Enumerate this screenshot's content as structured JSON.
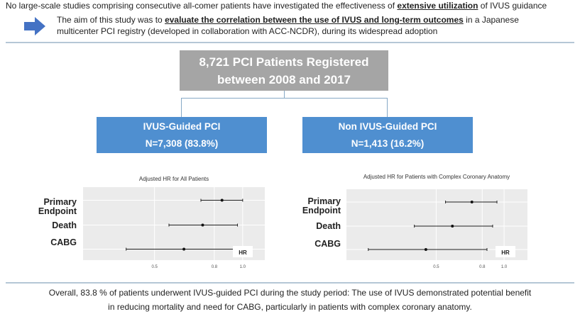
{
  "intro": {
    "pre": "No large-scale studies comprising consecutive all-comer patients have investigated the effectiveness of ",
    "emph": "extensive utilization",
    "post": " of IVUS guidance"
  },
  "aim": {
    "pre": "The aim of this study was to ",
    "emph": "evaluate the correlation between the use of IVUS and long-term outcomes",
    "post": " in a Japanese",
    "line2": "multicenter PCI registry (developed in collaboration with ACC-NCDR), during its widespread adoption"
  },
  "flow": {
    "total_line1": "8,721 PCI Patients Registered",
    "total_line2": "between 2008 and 2017",
    "left": {
      "label": "IVUS-Guided PCI",
      "n": "N=7,308 (83.8%)"
    },
    "right": {
      "label": "Non IVUS-Guided PCI",
      "n": "N=1,413 (16.2%)"
    }
  },
  "chart_data": [
    {
      "type": "forest",
      "title": "Adjusted HR for All Patients",
      "xscale": "log",
      "xlim": [
        0.285,
        1.19
      ],
      "xticks": [
        "0.5",
        "0.8",
        "1.0"
      ],
      "legend_label": "HR",
      "categories": [
        "Primary Endpoint",
        "Death",
        "CABG"
      ],
      "hr": [
        0.85,
        0.73,
        0.63
      ],
      "lower": [
        0.72,
        0.56,
        0.4
      ],
      "upper": [
        1.0,
        0.96,
        0.98
      ]
    },
    {
      "type": "forest",
      "title": "Adjusted HR for Patients with Complex Coronary Anatomy",
      "xscale": "log",
      "xlim": [
        0.2,
        1.27
      ],
      "xticks": [
        "0.5",
        "0.8",
        "1.0"
      ],
      "legend_label": "HR",
      "categories": [
        "Primary Endpoint",
        "Death",
        "CABG"
      ],
      "hr": [
        0.72,
        0.59,
        0.45
      ],
      "lower": [
        0.55,
        0.4,
        0.25
      ],
      "upper": [
        0.93,
        0.89,
        0.84
      ]
    }
  ],
  "conclusion": {
    "line1": "Overall, 83.8 % of patients underwent IVUS-guided PCI during the study period: The use of IVUS demonstrated potential benefit",
    "line2": "in reducing mortality and need for CABG, particularly in patients with complex coronary anatomy."
  },
  "colors": {
    "blue": "#4f8fd0",
    "gray": "#a5a5a5",
    "panel": "#ebebeb"
  }
}
